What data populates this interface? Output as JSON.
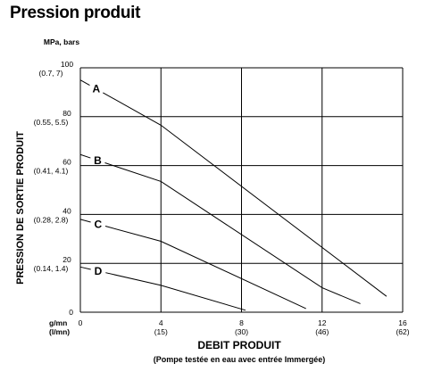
{
  "title": "Pression produit",
  "chart_data": {
    "type": "line",
    "ylabel": "PRESSION DE SORTIE PRODUIT",
    "y_units": "MPa, bars",
    "y_ticks": [
      {
        "value": 0,
        "label": "0",
        "sub": ""
      },
      {
        "value": 20,
        "label": "20",
        "sub": "(0.14, 1.4)"
      },
      {
        "value": 40,
        "label": "40",
        "sub": "(0.28, 2.8)"
      },
      {
        "value": 60,
        "label": "60",
        "sub": "(0.41, 4.1)"
      },
      {
        "value": 80,
        "label": "80",
        "sub": "(0.55, 5.5)"
      },
      {
        "value": 100,
        "label": "100",
        "sub": "(0.7, 7)"
      }
    ],
    "xlabel": "DEBIT PRODUIT",
    "xlabel_sub": "(Pompe testée en eau avec entrée Immergée)",
    "x_units": "g/mn",
    "x_units_sub": "(l/mn)",
    "x_ticks": [
      {
        "value": 0,
        "label": "0",
        "sub": ""
      },
      {
        "value": 4,
        "label": "4",
        "sub": "(15)"
      },
      {
        "value": 8,
        "label": "8",
        "sub": "(30)"
      },
      {
        "value": 12,
        "label": "12",
        "sub": "(46)"
      },
      {
        "value": 16,
        "label": "16",
        "sub": "(62)"
      }
    ],
    "xlim": [
      0,
      16
    ],
    "ylim": [
      0,
      100
    ],
    "grid": true,
    "series": [
      {
        "name": "A",
        "points": [
          [
            0,
            95
          ],
          [
            4,
            76.5
          ],
          [
            15.2,
            6.5
          ]
        ]
      },
      {
        "name": "B",
        "points": [
          [
            0,
            64.5
          ],
          [
            4,
            53.5
          ],
          [
            12,
            10
          ],
          [
            13.9,
            3.5
          ]
        ]
      },
      {
        "name": "C",
        "points": [
          [
            0,
            38
          ],
          [
            4,
            29
          ],
          [
            11.2,
            1.5
          ]
        ]
      },
      {
        "name": "D",
        "points": [
          [
            0,
            18.5
          ],
          [
            4,
            11
          ],
          [
            8.2,
            0.8
          ]
        ]
      }
    ]
  }
}
